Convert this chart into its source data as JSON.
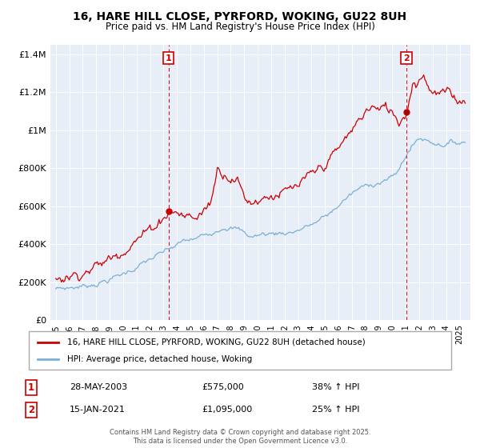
{
  "title_line1": "16, HARE HILL CLOSE, PYRFORD, WOKING, GU22 8UH",
  "title_line2": "Price paid vs. HM Land Registry's House Price Index (HPI)",
  "legend_label1": "16, HARE HILL CLOSE, PYRFORD, WOKING, GU22 8UH (detached house)",
  "legend_label2": "HPI: Average price, detached house, Woking",
  "annotation1_date": "28-MAY-2003",
  "annotation1_price": "£575,000",
  "annotation1_hpi": "38% ↑ HPI",
  "annotation2_date": "15-JAN-2021",
  "annotation2_price": "£1,095,000",
  "annotation2_hpi": "25% ↑ HPI",
  "footer": "Contains HM Land Registry data © Crown copyright and database right 2025.\nThis data is licensed under the Open Government Licence v3.0.",
  "red_color": "#cc0000",
  "blue_color": "#7ab0d4",
  "ylim_min": 0,
  "ylim_max": 1450000,
  "yticks": [
    0,
    200000,
    400000,
    600000,
    800000,
    1000000,
    1200000,
    1400000
  ],
  "ytick_labels": [
    "£0",
    "£200K",
    "£400K",
    "£600K",
    "£800K",
    "£1M",
    "£1.2M",
    "£1.4M"
  ],
  "sale1_year": 2003.38,
  "sale1_price": 575000,
  "sale2_year": 2021.04,
  "sale2_price": 1095000,
  "background_color": "#e8eef8",
  "grid_color": "#ffffff"
}
